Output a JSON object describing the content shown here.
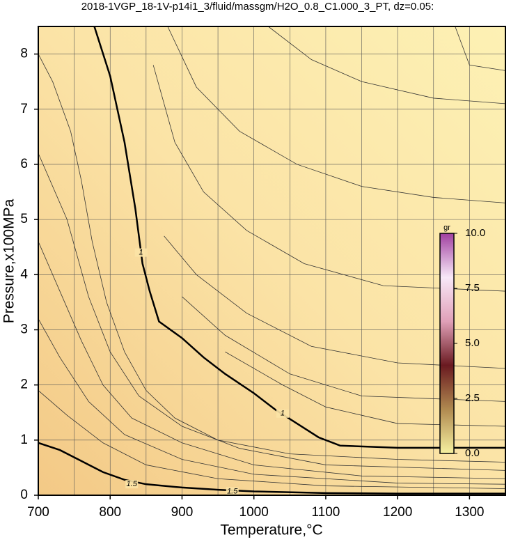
{
  "chart_data": {
    "type": "contour",
    "title": "2018-1VGP_18-1V-p14i1_3/fluid/massgm/H2O_0.8_C1.000_3_PT, dz=0.05:",
    "x_label": "Temperature,°C",
    "y_label": "Pressure,x100MPa",
    "xlim": [
      700,
      1350
    ],
    "ylim": [
      0,
      8.5
    ],
    "xticks": [
      700,
      800,
      900,
      1000,
      1100,
      1200,
      1300
    ],
    "yticks": [
      0,
      1,
      2,
      3,
      4,
      5,
      6,
      7,
      8
    ],
    "xgrid": [
      750,
      800,
      850,
      900,
      950,
      1000,
      1050,
      1100,
      1150,
      1200,
      1250,
      1300
    ],
    "ygrid": [
      1,
      2,
      3,
      4,
      5,
      6,
      7,
      8
    ],
    "series": [
      {
        "name": "1",
        "color": "#000000",
        "width": 2.5,
        "x": [
          778,
          800,
          820,
          835,
          843,
          845,
          855,
          868,
          900,
          930,
          960,
          1000,
          1030,
          1060,
          1090,
          1120,
          1200,
          1350
        ],
        "values": [
          8.5,
          7.6,
          6.4,
          5.2,
          4.4,
          4.2,
          3.7,
          3.15,
          2.85,
          2.5,
          2.2,
          1.85,
          1.55,
          1.3,
          1.05,
          0.9,
          0.86,
          0.86
        ],
        "labels_at": [
          [
            843,
            4.4
          ],
          [
            1040,
            1.48
          ]
        ]
      },
      {
        "name": "1.5",
        "color": "#000000",
        "width": 2.5,
        "x": [
          700,
          730,
          760,
          790,
          820,
          850,
          900,
          950,
          1000,
          1100,
          1200,
          1350
        ],
        "values": [
          0.95,
          0.82,
          0.62,
          0.42,
          0.28,
          0.2,
          0.14,
          0.1,
          0.07,
          0.04,
          0.03,
          0.03
        ],
        "labels_at": [
          [
            830,
            0.2
          ],
          [
            970,
            0.07
          ]
        ]
      },
      {
        "color": "#333333",
        "width": 0.8,
        "x": [
          700,
          720,
          745,
          760,
          775,
          795,
          820,
          850,
          890,
          950,
          1050,
          1200,
          1350
        ],
        "values": [
          8.0,
          7.5,
          6.6,
          5.7,
          4.6,
          3.5,
          2.6,
          1.9,
          1.4,
          1.0,
          0.75,
          0.65,
          0.6
        ]
      },
      {
        "color": "#333333",
        "width": 0.8,
        "x": [
          700,
          740,
          770,
          800,
          840,
          900,
          980,
          1100,
          1350
        ],
        "values": [
          6.2,
          5.0,
          3.6,
          2.6,
          1.8,
          1.25,
          0.85,
          0.55,
          0.45
        ]
      },
      {
        "color": "#333333",
        "width": 0.8,
        "x": [
          700,
          730,
          760,
          790,
          830,
          900,
          1000,
          1150,
          1350
        ],
        "values": [
          4.6,
          3.7,
          2.8,
          2.0,
          1.4,
          0.95,
          0.55,
          0.35,
          0.3
        ]
      },
      {
        "color": "#333333",
        "width": 0.8,
        "x": [
          700,
          730,
          770,
          820,
          900,
          1000,
          1200,
          1350
        ],
        "values": [
          3.2,
          2.5,
          1.7,
          1.1,
          0.65,
          0.38,
          0.22,
          0.2
        ]
      },
      {
        "color": "#333333",
        "width": 0.8,
        "x": [
          700,
          740,
          790,
          850,
          950,
          1100,
          1350
        ],
        "values": [
          1.9,
          1.45,
          0.95,
          0.55,
          0.3,
          0.17,
          0.12
        ]
      },
      {
        "color": "#333333",
        "width": 0.8,
        "x": [
          1280,
          1300,
          1350
        ],
        "values": [
          8.5,
          7.8,
          7.7
        ]
      },
      {
        "color": "#333333",
        "width": 0.8,
        "x": [
          1020,
          1080,
          1150,
          1250,
          1350
        ],
        "values": [
          8.5,
          7.9,
          7.5,
          7.2,
          7.1
        ]
      },
      {
        "color": "#333333",
        "width": 0.8,
        "x": [
          880,
          920,
          980,
          1060,
          1150,
          1250,
          1350
        ],
        "values": [
          8.5,
          7.4,
          6.6,
          6.0,
          5.6,
          5.4,
          5.3
        ]
      },
      {
        "color": "#333333",
        "width": 0.8,
        "x": [
          860,
          890,
          930,
          990,
          1070,
          1180,
          1350
        ],
        "values": [
          7.8,
          6.4,
          5.5,
          4.8,
          4.2,
          3.8,
          3.7
        ]
      },
      {
        "color": "#333333",
        "width": 0.8,
        "x": [
          875,
          920,
          990,
          1080,
          1200,
          1350
        ],
        "values": [
          4.7,
          4.0,
          3.3,
          2.7,
          2.4,
          2.3
        ]
      },
      {
        "color": "#333333",
        "width": 0.8,
        "x": [
          900,
          960,
          1050,
          1150,
          1350
        ],
        "values": [
          3.6,
          2.9,
          2.2,
          1.8,
          1.7
        ]
      },
      {
        "color": "#333333",
        "width": 0.8,
        "x": [
          960,
          1040,
          1100,
          1200,
          1350
        ],
        "values": [
          2.6,
          2.0,
          1.6,
          1.3,
          1.25
        ]
      }
    ],
    "colorbar": {
      "label": "gr",
      "lim": [
        0,
        10
      ],
      "ticks": [
        {
          "value": 0,
          "label": "0.0"
        },
        {
          "value": 2.5,
          "label": "2.5"
        },
        {
          "value": 5,
          "label": "5.0"
        },
        {
          "value": 7.5,
          "label": "7.5"
        },
        {
          "value": 10,
          "label": "10.0"
        }
      ],
      "colors": [
        "#f6f0a0",
        "#b08a50",
        "#6a1a20",
        "#e0a0b8",
        "#f8e8f8",
        "#a040a0"
      ]
    }
  }
}
